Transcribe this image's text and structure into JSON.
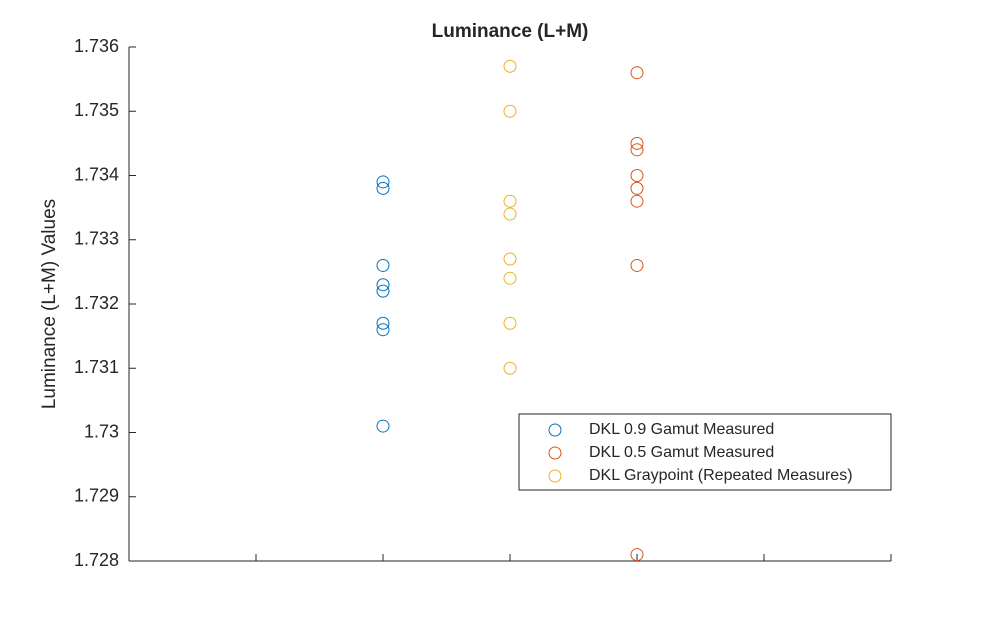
{
  "chart_data": {
    "type": "scatter",
    "title": "Luminance (L+M)",
    "y_label": "Luminance (L+M) Values",
    "xlim": [
      0,
      6
    ],
    "xticks": [
      0,
      1,
      2,
      3,
      4,
      5,
      6
    ],
    "ylim": [
      1.728,
      1.736
    ],
    "yticks": [
      1.728,
      1.729,
      {
        "value": 1.73,
        "label": "1.73"
      },
      1.731,
      1.732,
      1.733,
      1.734,
      1.735,
      1.736
    ],
    "legend": "southeast",
    "series": [
      {
        "name": "DKL 0.9 Gamut Measured",
        "color": "#0072BD",
        "x": [
          2,
          2,
          2,
          2,
          2,
          2,
          2,
          2
        ],
        "values": [
          1.7339,
          1.7338,
          1.7326,
          1.7323,
          1.7322,
          1.7317,
          1.7316,
          1.7301
        ]
      },
      {
        "name": "DKL 0.5 Gamut Measured",
        "color": "#D95319",
        "x": [
          4,
          4,
          4,
          4,
          4,
          4,
          4,
          4
        ],
        "values": [
          1.7356,
          1.7345,
          1.7344,
          1.734,
          1.7338,
          1.7336,
          1.7326,
          1.7281
        ]
      },
      {
        "name": "DKL Graypoint (Repeated Measures)",
        "color": "#EDB120",
        "x": [
          3,
          3,
          3,
          3,
          3,
          3,
          3,
          3
        ],
        "values": [
          1.7357,
          1.735,
          1.7336,
          1.7334,
          1.7327,
          1.7324,
          1.7317,
          1.731
        ]
      }
    ]
  }
}
